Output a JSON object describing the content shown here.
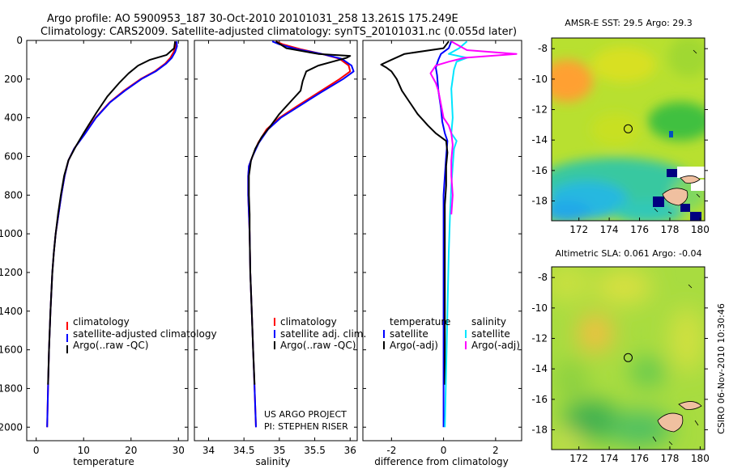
{
  "header": {
    "line1": "Argo profile: AO 5900953_187 30-Oct-2010 20101031_258 13.261S 175.249E",
    "line2": "Climatology: CARS2009. Satellite-adjusted climatology: synTS_20101031.nc (0.055d later)"
  },
  "credit": {
    "line1": "US ARGO PROJECT",
    "line2": "PI: STEPHEN RISER"
  },
  "stamp": "CSIRO 06-Nov-2010 10:30:46",
  "colors": {
    "red": "#ff0000",
    "blue": "#0000ff",
    "black": "#000000",
    "cyan": "#00e5ff",
    "magenta": "#ff00ff"
  },
  "chart_data": [
    {
      "type": "line",
      "name": "temperature-profile",
      "xlabel": "temperature",
      "xlim": [
        -2,
        32
      ],
      "ylim": [
        0,
        2070
      ],
      "xticks": [
        0,
        10,
        20,
        30
      ],
      "yticks": [
        0,
        200,
        400,
        600,
        800,
        1000,
        1200,
        1400,
        1600,
        1800,
        2000
      ],
      "series": [
        {
          "name": "climatology",
          "color": "#ff0000",
          "points": [
            [
              29.3,
              5
            ],
            [
              29.4,
              30
            ],
            [
              29.0,
              60
            ],
            [
              28.3,
              90
            ],
            [
              27.2,
              120
            ],
            [
              25.0,
              160
            ],
            [
              22.0,
              200
            ],
            [
              18.5,
              260
            ],
            [
              15.5,
              320
            ],
            [
              12.5,
              400
            ],
            [
              10.0,
              490
            ],
            [
              8.0,
              560
            ],
            [
              6.8,
              620
            ],
            [
              6.0,
              700
            ],
            [
              5.3,
              800
            ],
            [
              4.7,
              900
            ],
            [
              4.1,
              1000
            ],
            [
              3.7,
              1100
            ],
            [
              3.4,
              1200
            ],
            [
              3.0,
              1400
            ],
            [
              2.7,
              1600
            ],
            [
              2.5,
              1800
            ],
            [
              2.3,
              2000
            ]
          ]
        },
        {
          "name": "satellite-adjusted climatology",
          "color": "#0000ff",
          "points": [
            [
              29.6,
              5
            ],
            [
              29.7,
              30
            ],
            [
              29.3,
              60
            ],
            [
              28.6,
              90
            ],
            [
              27.4,
              120
            ],
            [
              25.2,
              160
            ],
            [
              22.2,
              200
            ],
            [
              18.7,
              260
            ],
            [
              15.6,
              320
            ],
            [
              12.6,
              400
            ],
            [
              10.1,
              490
            ],
            [
              8.0,
              560
            ],
            [
              6.8,
              620
            ],
            [
              6.0,
              700
            ],
            [
              5.3,
              800
            ],
            [
              4.7,
              900
            ],
            [
              4.1,
              1000
            ],
            [
              3.7,
              1100
            ],
            [
              3.4,
              1200
            ],
            [
              3.0,
              1400
            ],
            [
              2.7,
              1600
            ],
            [
              2.5,
              1800
            ],
            [
              2.3,
              2000
            ]
          ]
        },
        {
          "name": "Argo(..raw -QC)",
          "color": "#000000",
          "points": [
            [
              29.3,
              5
            ],
            [
              29.1,
              40
            ],
            [
              27.5,
              75
            ],
            [
              24.0,
              100
            ],
            [
              21.5,
              130
            ],
            [
              19.5,
              170
            ],
            [
              17.5,
              220
            ],
            [
              15.0,
              290
            ],
            [
              12.8,
              370
            ],
            [
              11.0,
              440
            ],
            [
              10.0,
              480
            ],
            [
              8.3,
              550
            ],
            [
              6.8,
              620
            ],
            [
              5.9,
              700
            ],
            [
              5.2,
              800
            ],
            [
              4.6,
              900
            ],
            [
              4.1,
              1000
            ],
            [
              3.7,
              1100
            ],
            [
              3.4,
              1200
            ],
            [
              3.0,
              1400
            ],
            [
              2.7,
              1600
            ],
            [
              2.5,
              1780
            ]
          ]
        }
      ],
      "legend": [
        "climatology",
        "satellite-adjusted climatology",
        "Argo(..raw -QC)"
      ]
    },
    {
      "type": "line",
      "name": "salinity-profile",
      "xlabel": "salinity",
      "xlim": [
        33.8,
        36.1
      ],
      "ylim": [
        0,
        2070
      ],
      "xticks": [
        34,
        34.5,
        35,
        35.5,
        36
      ],
      "xtick_labels": [
        "34",
        "34.5",
        "35",
        "35.5",
        "36"
      ],
      "series": [
        {
          "name": "climatology",
          "color": "#ff0000",
          "points": [
            [
              34.95,
              5
            ],
            [
              35.05,
              20
            ],
            [
              35.3,
              45
            ],
            [
              35.6,
              70
            ],
            [
              35.85,
              95
            ],
            [
              35.98,
              130
            ],
            [
              36.0,
              160
            ],
            [
              35.85,
              200
            ],
            [
              35.55,
              270
            ],
            [
              35.25,
              340
            ],
            [
              35.0,
              400
            ],
            [
              34.82,
              460
            ],
            [
              34.7,
              530
            ],
            [
              34.62,
              600
            ],
            [
              34.57,
              650
            ],
            [
              34.56,
              700
            ],
            [
              34.56,
              800
            ],
            [
              34.57,
              900
            ],
            [
              34.58,
              1000
            ],
            [
              34.59,
              1200
            ],
            [
              34.61,
              1400
            ],
            [
              34.63,
              1600
            ],
            [
              34.65,
              1800
            ],
            [
              34.67,
              2000
            ]
          ]
        },
        {
          "name": "satellite adj. clim.",
          "color": "#0000ff",
          "points": [
            [
              34.9,
              5
            ],
            [
              35.0,
              20
            ],
            [
              35.25,
              45
            ],
            [
              35.6,
              70
            ],
            [
              35.88,
              95
            ],
            [
              36.02,
              130
            ],
            [
              36.05,
              160
            ],
            [
              35.9,
              200
            ],
            [
              35.58,
              270
            ],
            [
              35.28,
              340
            ],
            [
              35.02,
              400
            ],
            [
              34.84,
              460
            ],
            [
              34.71,
              530
            ],
            [
              34.62,
              600
            ],
            [
              34.57,
              650
            ],
            [
              34.56,
              700
            ],
            [
              34.56,
              800
            ],
            [
              34.57,
              900
            ],
            [
              34.58,
              1000
            ],
            [
              34.59,
              1200
            ],
            [
              34.61,
              1400
            ],
            [
              34.63,
              1600
            ],
            [
              34.65,
              1800
            ],
            [
              34.67,
              2000
            ]
          ]
        },
        {
          "name": "Argo(..raw -QC)",
          "color": "#000000",
          "points": [
            [
              34.95,
              5
            ],
            [
              35.1,
              40
            ],
            [
              35.55,
              70
            ],
            [
              36.0,
              80
            ],
            [
              35.95,
              90
            ],
            [
              35.75,
              110
            ],
            [
              35.55,
              130
            ],
            [
              35.38,
              160
            ],
            [
              35.33,
              210
            ],
            [
              35.3,
              260
            ],
            [
              35.15,
              320
            ],
            [
              35.0,
              380
            ],
            [
              34.88,
              440
            ],
            [
              34.75,
              500
            ],
            [
              34.66,
              560
            ],
            [
              34.6,
              620
            ],
            [
              34.57,
              700
            ],
            [
              34.57,
              800
            ],
            [
              34.58,
              900
            ],
            [
              34.58,
              1000
            ],
            [
              34.59,
              1200
            ],
            [
              34.61,
              1400
            ],
            [
              34.63,
              1600
            ],
            [
              34.65,
              1780
            ]
          ]
        }
      ],
      "legend": [
        "climatology",
        "satellite adj. clim.",
        "Argo(..raw -QC)"
      ]
    },
    {
      "type": "line",
      "name": "difference-profile",
      "xlabel": "difference from climatology",
      "xlim": [
        -3.1,
        3.0
      ],
      "ylim": [
        0,
        2070
      ],
      "xticks": [
        -2,
        0,
        2
      ],
      "series": [
        {
          "name": "temperature satellite",
          "color": "#0000ff",
          "points": [
            [
              0.3,
              5
            ],
            [
              0.2,
              40
            ],
            [
              -0.1,
              70
            ],
            [
              -0.2,
              100
            ],
            [
              -0.3,
              140
            ],
            [
              -0.25,
              180
            ],
            [
              -0.2,
              260
            ],
            [
              -0.1,
              350
            ],
            [
              -0.05,
              420
            ],
            [
              0.05,
              480
            ],
            [
              0.15,
              520
            ],
            [
              0.1,
              600
            ],
            [
              0.05,
              700
            ],
            [
              0,
              800
            ],
            [
              0,
              1000
            ],
            [
              0,
              1200
            ],
            [
              0,
              1400
            ],
            [
              0,
              1600
            ],
            [
              0,
              1800
            ],
            [
              0,
              2000
            ]
          ]
        },
        {
          "name": "temperature Argo(-adj)",
          "color": "#000000",
          "points": [
            [
              0.2,
              5
            ],
            [
              0.0,
              40
            ],
            [
              -1.5,
              70
            ],
            [
              -2.0,
              100
            ],
            [
              -2.4,
              125
            ],
            [
              -2.2,
              140
            ],
            [
              -2.0,
              160
            ],
            [
              -1.8,
              200
            ],
            [
              -1.6,
              260
            ],
            [
              -1.3,
              320
            ],
            [
              -1.0,
              380
            ],
            [
              -0.6,
              440
            ],
            [
              -0.3,
              480
            ],
            [
              0.1,
              520
            ],
            [
              0.15,
              580
            ],
            [
              0.1,
              650
            ],
            [
              0.1,
              750
            ],
            [
              0.05,
              850
            ],
            [
              0.05,
              1000
            ],
            [
              0.05,
              1200
            ],
            [
              0.05,
              1400
            ],
            [
              0.05,
              1600
            ],
            [
              0.05,
              1780
            ]
          ]
        },
        {
          "name": "salinity satellite",
          "color": "#00e5ff",
          "points": [
            [
              0.9,
              5
            ],
            [
              0.6,
              40
            ],
            [
              0.2,
              70
            ],
            [
              0.9,
              90
            ],
            [
              0.5,
              110
            ],
            [
              0.4,
              150
            ],
            [
              0.3,
              250
            ],
            [
              0.35,
              400
            ],
            [
              0.3,
              480
            ],
            [
              0.5,
              520
            ],
            [
              0.4,
              560
            ],
            [
              0.35,
              650
            ],
            [
              0.3,
              750
            ],
            [
              0.25,
              900
            ],
            [
              0.2,
              1100
            ],
            [
              0.15,
              1400
            ],
            [
              0.1,
              1700
            ],
            [
              0.05,
              2000
            ]
          ]
        },
        {
          "name": "salinity Argo(-adj)",
          "color": "#ff00ff",
          "points": [
            [
              0.3,
              5
            ],
            [
              0.9,
              50
            ],
            [
              2.8,
              70
            ],
            [
              0.8,
              90
            ],
            [
              0.2,
              110
            ],
            [
              -0.3,
              130
            ],
            [
              -0.5,
              170
            ],
            [
              -0.3,
              220
            ],
            [
              -0.2,
              260
            ],
            [
              -0.1,
              330
            ],
            [
              0.0,
              400
            ],
            [
              0.2,
              440
            ],
            [
              0.3,
              480
            ],
            [
              0.35,
              540
            ],
            [
              0.3,
              620
            ],
            [
              0.3,
              700
            ],
            [
              0.35,
              800
            ],
            [
              0.3,
              900
            ]
          ]
        }
      ],
      "legend_left_title": "temperature",
      "legend_right_title": "salinity",
      "legend_left": [
        "satellite",
        "Argo(-adj)"
      ],
      "legend_right": [
        "satellite",
        "Argo(-adj)"
      ]
    },
    {
      "type": "heatmap",
      "name": "sst-map",
      "title": "AMSR-E SST: 29.5 Argo: 29.3",
      "xlim": [
        170.2,
        180.3
      ],
      "ylim": [
        -19.3,
        -7.3
      ],
      "xticks": [
        172,
        174,
        176,
        178,
        180
      ],
      "yticks": [
        -8,
        -10,
        -12,
        -14,
        -16,
        -18
      ],
      "argo_position": [
        175.249,
        -13.261
      ]
    },
    {
      "type": "heatmap",
      "name": "sla-map",
      "title": "Altimetric SLA: 0.061 Argo: -0.04",
      "xlim": [
        170.2,
        180.3
      ],
      "ylim": [
        -19.3,
        -7.3
      ],
      "xticks": [
        172,
        174,
        176,
        178,
        180
      ],
      "yticks": [
        -8,
        -10,
        -12,
        -14,
        -16,
        -18
      ],
      "argo_position": [
        175.249,
        -13.261
      ]
    }
  ]
}
